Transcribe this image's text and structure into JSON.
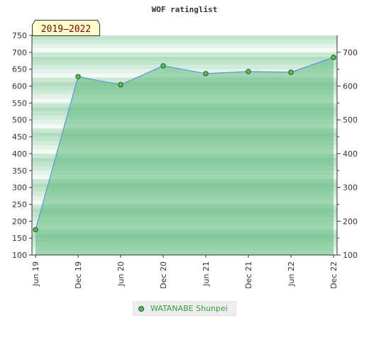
{
  "chart_data": {
    "type": "area",
    "title": "WOF ratinglist",
    "period_label": "2019–2022",
    "x": [
      "Jun 19",
      "Dec 19",
      "Jun 20",
      "Dec 20",
      "Jun 21",
      "Dec 21",
      "Jun 22",
      "Dec 22"
    ],
    "series": [
      {
        "name": "WATANABE Shunpei",
        "values": [
          175,
          628,
          604,
          660,
          637,
          643,
          641,
          685
        ]
      }
    ],
    "ylim": [
      100,
      750
    ],
    "left_ticks": [
      100,
      150,
      200,
      250,
      300,
      350,
      400,
      450,
      500,
      550,
      600,
      650,
      700,
      750
    ],
    "right_ticks": [
      100,
      200,
      300,
      400,
      500,
      600,
      700
    ],
    "grid": false,
    "legend_position": "bottom-center",
    "colors": {
      "fill": "#5cb87a",
      "line": "#5599dd",
      "marker": "#5cb85c",
      "marker_edge": "#1d5a1d",
      "legend_text": "#3aa03a"
    }
  }
}
